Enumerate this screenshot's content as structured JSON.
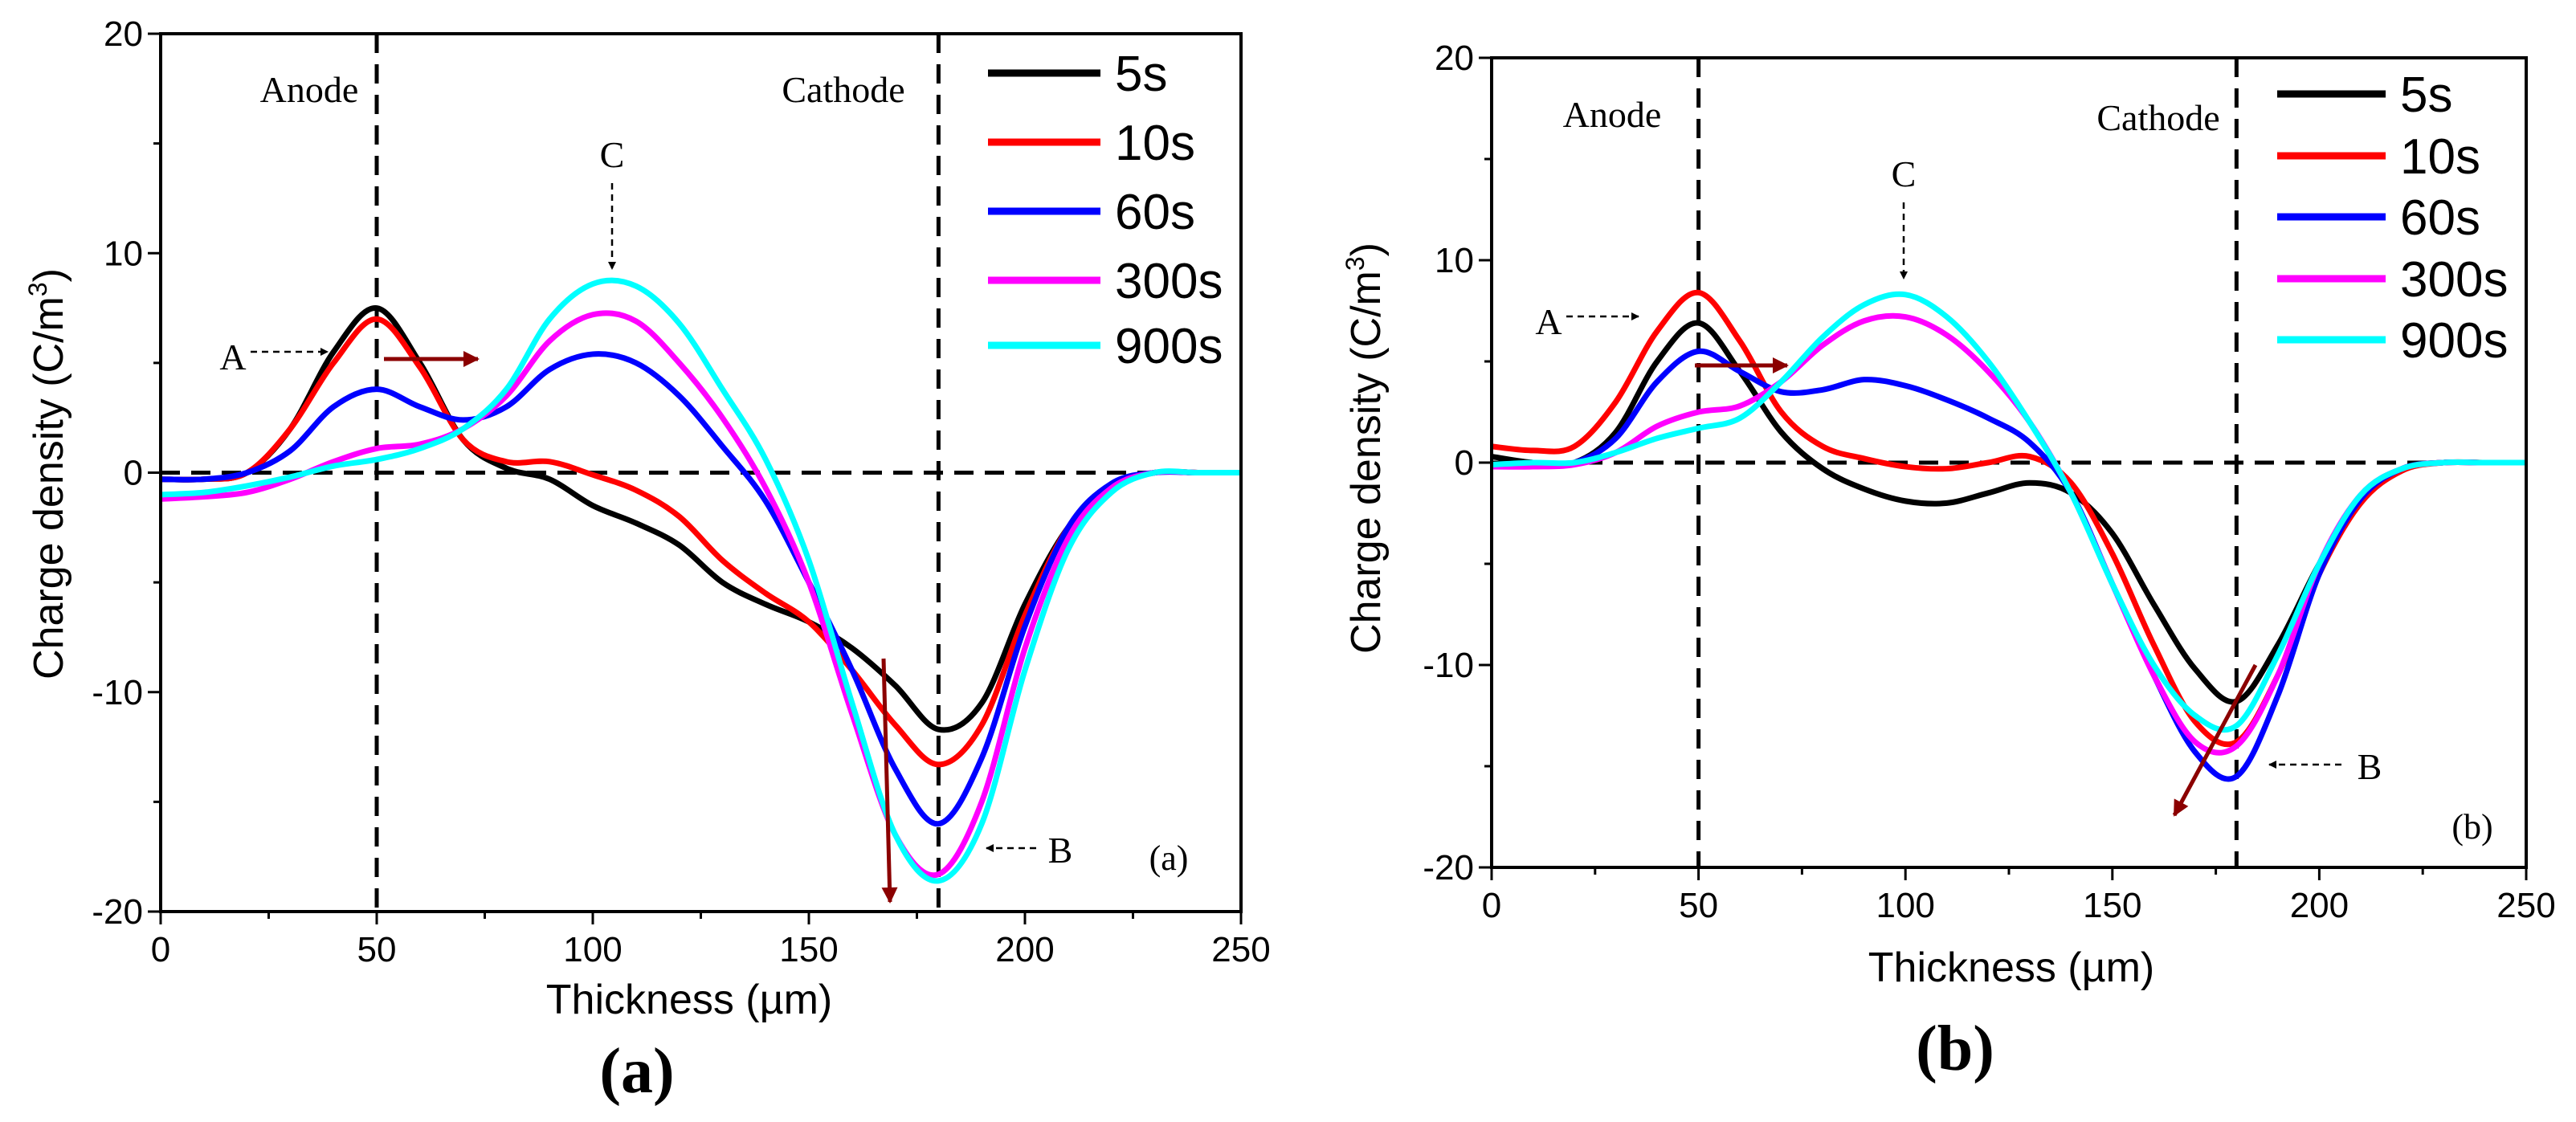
{
  "colors": {
    "5s": "#000000",
    "10s": "#ff0000",
    "60s": "#0000ff",
    "300s": "#ff00ff",
    "900s": "#00ffff",
    "trend_arrow": "#8b0000",
    "axis": "#000000"
  },
  "chart_data": [
    {
      "type": "line",
      "panel_label": "(a)",
      "caption": "(a)",
      "xlabel": "Thickness (µm)",
      "ylabel": "Charge density (C/m",
      "ylabel_sup": "3",
      "ylabel_end": ")",
      "xlim": [
        0,
        250
      ],
      "ylim": [
        -20,
        20
      ],
      "xticks": [
        "0",
        "50",
        "100",
        "150",
        "200",
        "250"
      ],
      "yticks": [
        "-20",
        "-10",
        "0",
        "10",
        "20"
      ],
      "legend_position": "top-right",
      "annotations": {
        "anode": "Anode",
        "cathode": "Cathode",
        "A": "A",
        "B": "B",
        "C": "C"
      },
      "reference_lines": {
        "anode_x": 50,
        "cathode_x": 180,
        "zero_y": 0
      },
      "x": [
        0,
        10,
        20,
        30,
        40,
        50,
        60,
        70,
        80,
        90,
        100,
        110,
        120,
        130,
        140,
        150,
        160,
        170,
        180,
        190,
        200,
        210,
        220,
        230,
        240,
        250
      ],
      "series": [
        {
          "name": "5s",
          "values": [
            -0.3,
            -0.3,
            0,
            2,
            5.5,
            7.5,
            5,
            1.5,
            0.2,
            -0.3,
            -1.5,
            -2.3,
            -3.3,
            -5,
            -6,
            -6.8,
            -8,
            -9.7,
            -11.7,
            -10.5,
            -6,
            -2.5,
            -0.7,
            0,
            0,
            0
          ]
        },
        {
          "name": "10s",
          "values": [
            -0.3,
            -0.3,
            0,
            2,
            5,
            7,
            4.8,
            1.5,
            0.5,
            0.5,
            -0.1,
            -0.8,
            -2,
            -4,
            -5.5,
            -6.8,
            -9,
            -11.5,
            -13.3,
            -11.5,
            -6.5,
            -2.5,
            -0.7,
            0,
            0,
            0
          ]
        },
        {
          "name": "60s",
          "values": [
            -0.3,
            -0.3,
            0,
            1,
            3,
            3.8,
            3,
            2.4,
            3,
            4.7,
            5.4,
            5,
            3.5,
            1.2,
            -1.3,
            -5,
            -9,
            -13.5,
            -16,
            -13,
            -7,
            -2.5,
            -0.5,
            0,
            0,
            0
          ]
        },
        {
          "name": "300s",
          "values": [
            -1.2,
            -1.1,
            -0.9,
            -0.3,
            0.5,
            1.1,
            1.3,
            2,
            3.5,
            6,
            7.2,
            6.9,
            5,
            2.5,
            -0.7,
            -5,
            -11,
            -16.5,
            -18.3,
            -15,
            -8,
            -3,
            -0.7,
            0,
            0,
            0
          ]
        },
        {
          "name": "900s",
          "values": [
            -1,
            -0.9,
            -0.6,
            -0.2,
            0.3,
            0.6,
            1.1,
            2,
            3.8,
            7,
            8.6,
            8.5,
            6.8,
            3.8,
            0.6,
            -4,
            -10.5,
            -16.5,
            -18.6,
            -16,
            -9,
            -3.5,
            -0.9,
            0,
            0,
            0
          ]
        }
      ]
    },
    {
      "type": "line",
      "panel_label": "(b)",
      "caption": "(b)",
      "xlabel": "Thickness (µm)",
      "ylabel": "Charge density (C/m",
      "ylabel_sup": "3",
      "ylabel_end": ")",
      "xlim": [
        0,
        250
      ],
      "ylim": [
        -20,
        20
      ],
      "xticks": [
        "0",
        "50",
        "100",
        "150",
        "200",
        "250"
      ],
      "yticks": [
        "-20",
        "-10",
        "0",
        "10",
        "20"
      ],
      "legend_position": "top-right",
      "annotations": {
        "anode": "Anode",
        "cathode": "Cathode",
        "A": "A",
        "B": "B",
        "C": "C"
      },
      "reference_lines": {
        "anode_x": 50,
        "cathode_x": 180,
        "zero_y": 0
      },
      "x": [
        0,
        10,
        20,
        30,
        40,
        50,
        60,
        70,
        80,
        90,
        100,
        110,
        120,
        130,
        140,
        150,
        160,
        170,
        180,
        190,
        200,
        210,
        220,
        230,
        240,
        250
      ],
      "series": [
        {
          "name": "5s",
          "values": [
            0.3,
            0,
            0,
            1.5,
            5,
            6.9,
            4.5,
            1.5,
            -0.3,
            -1.3,
            -1.9,
            -2,
            -1.5,
            -1,
            -1.5,
            -3.5,
            -7,
            -10.2,
            -11.8,
            -9,
            -5,
            -1.8,
            -0.3,
            0,
            0,
            0
          ]
        },
        {
          "name": "10s",
          "values": [
            0.8,
            0.6,
            0.8,
            3,
            6.5,
            8.4,
            6,
            2.5,
            0.8,
            0.2,
            -0.2,
            -0.3,
            0,
            0.3,
            -1,
            -4.5,
            -9,
            -12.8,
            -13.8,
            -10.5,
            -5.5,
            -2,
            -0.4,
            0,
            0,
            0
          ]
        },
        {
          "name": "60s",
          "values": [
            -0.2,
            -0.1,
            0,
            1.2,
            4,
            5.5,
            4.5,
            3.5,
            3.6,
            4.1,
            3.8,
            3.1,
            2.2,
            1,
            -1.5,
            -6,
            -10.5,
            -14.3,
            -15.5,
            -11.5,
            -5.5,
            -1.8,
            -0.3,
            0,
            0,
            0
          ]
        },
        {
          "name": "300s",
          "values": [
            -0.2,
            -0.2,
            -0.1,
            0.5,
            1.8,
            2.5,
            2.8,
            4,
            5.8,
            7,
            7.2,
            6.3,
            4.5,
            2,
            -1.5,
            -6,
            -10.5,
            -13.8,
            -14,
            -10.5,
            -5,
            -1.6,
            -0.3,
            0,
            0,
            0
          ]
        },
        {
          "name": "900s",
          "values": [
            -0.1,
            0,
            0,
            0.5,
            1.2,
            1.7,
            2.2,
            4,
            6.2,
            7.8,
            8.3,
            7.2,
            5,
            2,
            -1.5,
            -6,
            -10,
            -12.5,
            -13,
            -9.5,
            -5,
            -1.6,
            -0.3,
            0,
            0,
            0
          ]
        }
      ]
    }
  ]
}
